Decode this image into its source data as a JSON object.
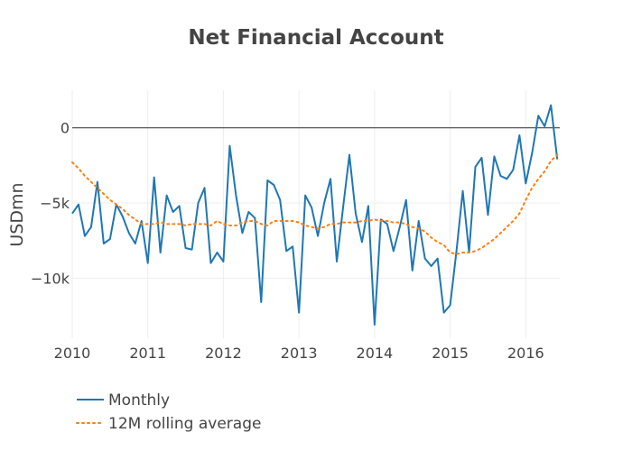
{
  "chart_data": {
    "type": "line",
    "title": "Net Financial Account",
    "xlabel": "",
    "ylabel": "USDmn",
    "x_ticks": [
      "2010",
      "2011",
      "2012",
      "2013",
      "2014",
      "2015",
      "2016"
    ],
    "y_ticks": [
      {
        "value": 0,
        "label": "0"
      },
      {
        "value": -5000,
        "label": "−5k"
      },
      {
        "value": -10000,
        "label": "−10k"
      }
    ],
    "xlim": [
      2010.0,
      2016.45
    ],
    "ylim": [
      -14000,
      2500
    ],
    "grid": true,
    "legend_position": "bottom-left",
    "series": [
      {
        "name": "Monthly",
        "color": "#1f77b4",
        "dash": "solid",
        "x_start": 2010.0,
        "x_step_months": 1,
        "values": [
          -5700,
          -5100,
          -7200,
          -6600,
          -3600,
          -7700,
          -7400,
          -5100,
          -5900,
          -7000,
          -7700,
          -6200,
          -9000,
          -3300,
          -8300,
          -4500,
          -5600,
          -5200,
          -8000,
          -8100,
          -5000,
          -4000,
          -9000,
          -8300,
          -8900,
          -1200,
          -4500,
          -7000,
          -5600,
          -6000,
          -11600,
          -3500,
          -3800,
          -4800,
          -8200,
          -7900,
          -12300,
          -4500,
          -5300,
          -7200,
          -5000,
          -3400,
          -8900,
          -5300,
          -1800,
          -5700,
          -7600,
          -5200,
          -13100,
          -6100,
          -6400,
          -8200,
          -6600,
          -4800,
          -9500,
          -6200,
          -8700,
          -9200,
          -8700,
          -12300,
          -11800,
          -8200,
          -4200,
          -8300,
          -2600,
          -2000,
          -5800,
          -1900,
          -3200,
          -3400,
          -2800,
          -500,
          -3700,
          -1700,
          800,
          100,
          1500,
          -2100
        ]
      },
      {
        "name": "12M rolling average",
        "color": "#ff7f0e",
        "dash": "dot",
        "x_start": 2010.0,
        "x_step_months": 1,
        "values": [
          -2300,
          -2700,
          -3200,
          -3600,
          -4000,
          -4400,
          -4800,
          -5100,
          -5400,
          -5800,
          -6100,
          -6400,
          -6400,
          -6400,
          -6300,
          -6400,
          -6400,
          -6400,
          -6500,
          -6400,
          -6400,
          -6400,
          -6500,
          -6200,
          -6400,
          -6500,
          -6500,
          -6300,
          -6200,
          -6200,
          -6400,
          -6500,
          -6200,
          -6200,
          -6200,
          -6200,
          -6300,
          -6500,
          -6600,
          -6700,
          -6600,
          -6400,
          -6400,
          -6300,
          -6300,
          -6300,
          -6200,
          -6200,
          -6100,
          -6200,
          -6200,
          -6300,
          -6300,
          -6400,
          -6600,
          -6700,
          -6900,
          -7300,
          -7600,
          -7800,
          -8300,
          -8400,
          -8300,
          -8300,
          -8200,
          -8000,
          -7700,
          -7400,
          -7000,
          -6600,
          -6200,
          -5700,
          -4800,
          -4000,
          -3400,
          -2900,
          -2200,
          -1800
        ]
      }
    ]
  }
}
